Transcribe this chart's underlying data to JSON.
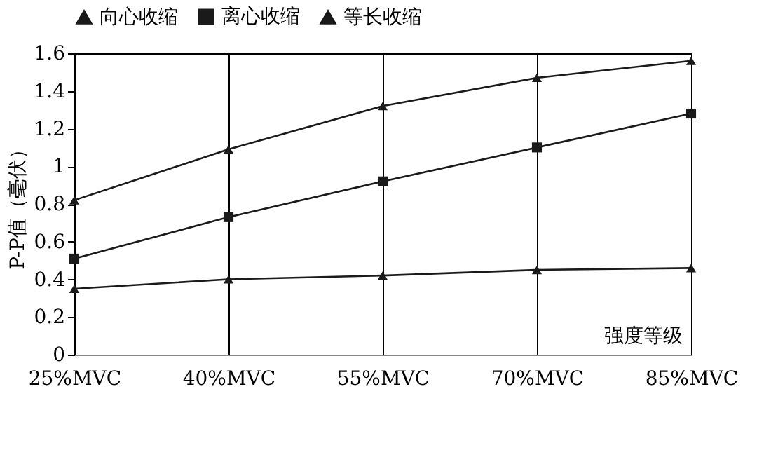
{
  "chart_data": {
    "type": "line",
    "ylabel": "P-P值（毫伏）",
    "categories": [
      "25%MVC",
      "40%MVC",
      "55%MVC",
      "70%MVC",
      "85%MVC"
    ],
    "series": [
      {
        "name": "向心收缩",
        "color": "#1a1a1a",
        "marker": "triangle",
        "values": [
          0.82,
          1.09,
          1.32,
          1.47,
          1.56
        ]
      },
      {
        "name": "离心收缩",
        "color": "#1a1a1a",
        "marker": "square",
        "values": [
          0.51,
          0.73,
          0.92,
          1.1,
          1.28
        ]
      },
      {
        "name": "等长收缩",
        "color": "#1a1a1a",
        "marker": "triangle",
        "values": [
          0.35,
          0.4,
          0.42,
          0.45,
          0.46
        ]
      }
    ],
    "ylim": [
      0,
      1.6
    ],
    "yticks": [
      0,
      0.2,
      0.4,
      0.6,
      0.8,
      1,
      1.2,
      1.4,
      1.6
    ],
    "grid": "x",
    "legend": "top",
    "line_style": "solid",
    "annotations": [
      "强度等级"
    ]
  }
}
